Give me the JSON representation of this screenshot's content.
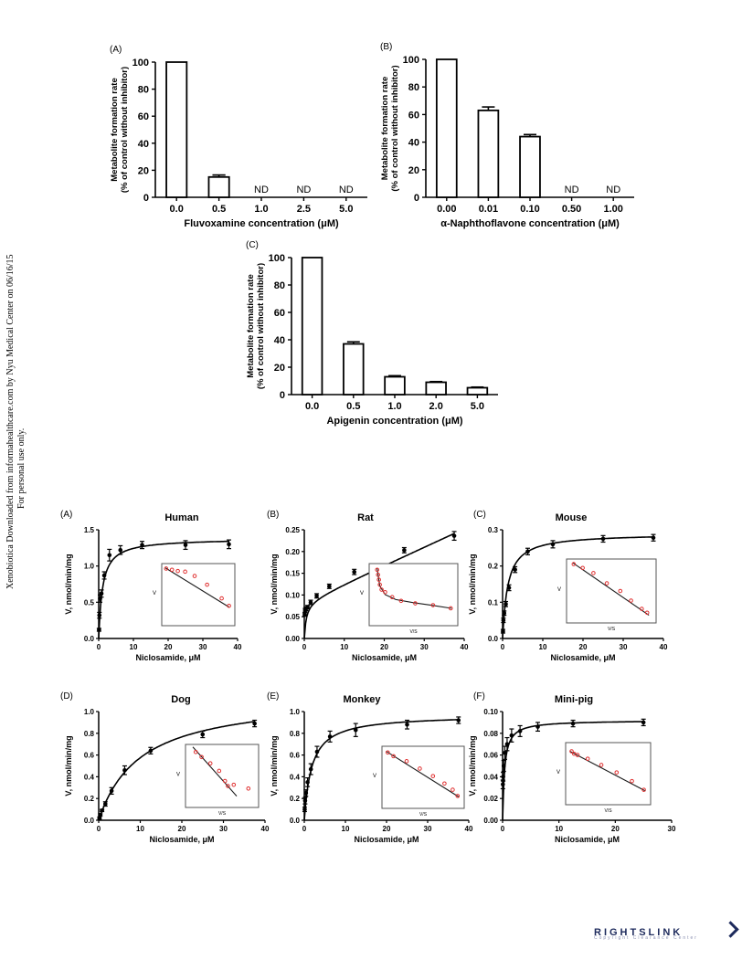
{
  "side_note": {
    "line1": "Xenobiotica Downloaded from informahealthcare.com by Nyu Medical Center on 06/16/15",
    "line2": "For personal use only."
  },
  "rightslink": {
    "logo": "RIGHTSLINK",
    "sub": "Copyright Clearance Center"
  },
  "colors": {
    "inset_points": "#e03030",
    "bars": "#ffffff",
    "axes": "#000000"
  },
  "chart_data": [
    {
      "id": "inhibA",
      "type": "bar",
      "panel": "(A)",
      "ylabel": [
        "Metabolite formation rate",
        "(% of control without inhibitor)"
      ],
      "xlabel": "Fluvoxamine concentration (μM)",
      "categories": [
        "0.0",
        "0.5",
        "1.0",
        "2.5",
        "5.0"
      ],
      "values": [
        100,
        15,
        null,
        null,
        null
      ],
      "errors": [
        0,
        1.5,
        0,
        0,
        0
      ],
      "labels": [
        "",
        "",
        "ND",
        "ND",
        "ND"
      ],
      "ylim": [
        0,
        100
      ],
      "yticks": [
        0,
        20,
        40,
        60,
        80,
        100
      ]
    },
    {
      "id": "inhibB",
      "type": "bar",
      "panel": "(B)",
      "ylabel": [
        "Metabolite formation rate",
        "(% of control without inhibitor)"
      ],
      "xlabel": "α-Naphthoflavone concentration (μM)",
      "categories": [
        "0.00",
        "0.01",
        "0.10",
        "0.50",
        "1.00"
      ],
      "values": [
        100,
        63,
        44,
        null,
        null
      ],
      "errors": [
        0,
        2.5,
        1.5,
        0,
        0
      ],
      "labels": [
        "",
        "",
        "",
        "ND",
        "ND"
      ],
      "ylim": [
        0,
        100
      ],
      "yticks": [
        0,
        20,
        40,
        60,
        80,
        100
      ]
    },
    {
      "id": "inhibC",
      "type": "bar",
      "panel": "(C)",
      "ylabel": [
        "Metabolite formation rate",
        "(% of control without inhibitor)"
      ],
      "xlabel": "Apigenin concentration (μM)",
      "categories": [
        "0.0",
        "0.5",
        "1.0",
        "2.0",
        "5.0"
      ],
      "values": [
        100,
        37,
        13,
        9,
        5
      ],
      "errors": [
        0,
        1.5,
        0.8,
        0.5,
        0.5
      ],
      "labels": [
        "",
        "",
        "",
        "",
        ""
      ],
      "ylim": [
        0,
        100
      ],
      "yticks": [
        0,
        20,
        40,
        60,
        80,
        100
      ]
    },
    {
      "id": "kinA",
      "type": "scatter",
      "panel": "(A)",
      "title": "Human",
      "xlabel": "Niclosamide, μM",
      "ylabel": "V, nmol/min/mg",
      "xlim": [
        0,
        40
      ],
      "xticks": [
        0,
        10,
        20,
        30,
        40
      ],
      "ylim": [
        0,
        1.5
      ],
      "yticks": [
        0.0,
        0.5,
        1.0,
        1.5
      ],
      "ytick_labels": [
        "0.0",
        "0.5",
        "1.0",
        "1.5"
      ],
      "fit": "mm",
      "vmax": 1.38,
      "km": 1.1,
      "x": [
        0.1,
        0.2,
        0.4,
        0.8,
        1.6,
        3.1,
        6.25,
        12.5,
        25,
        37.5
      ],
      "y": [
        0.12,
        0.32,
        0.55,
        0.62,
        0.87,
        1.15,
        1.22,
        1.29,
        1.29,
        1.3
      ],
      "err": [
        0.02,
        0.04,
        0.05,
        0.05,
        0.05,
        0.08,
        0.06,
        0.05,
        0.06,
        0.06
      ],
      "inset": {
        "xlabel": "",
        "ylabel": "V",
        "points": [
          [
            0.06,
            0.92
          ],
          [
            0.14,
            0.9
          ],
          [
            0.22,
            0.88
          ],
          [
            0.32,
            0.87
          ],
          [
            0.45,
            0.8
          ],
          [
            0.62,
            0.66
          ],
          [
            0.82,
            0.44
          ],
          [
            0.92,
            0.32
          ]
        ],
        "line": [
          [
            0.05,
            0.93
          ],
          [
            0.92,
            0.3
          ]
        ]
      }
    },
    {
      "id": "kinB",
      "type": "scatter",
      "panel": "(B)",
      "title": "Rat",
      "xlabel": "Niclosamide, μM",
      "ylabel": "V, nmol/min/mg",
      "xlim": [
        0,
        40
      ],
      "xticks": [
        0,
        10,
        20,
        30,
        40
      ],
      "ylim": [
        0,
        0.25
      ],
      "yticks": [
        0.0,
        0.05,
        0.1,
        0.15,
        0.2,
        0.25
      ],
      "ytick_labels": [
        "0.00",
        "0.05",
        "0.10",
        "0.15",
        "0.20",
        "0.25"
      ],
      "fit": "mm_linear",
      "vmax": 0.085,
      "km": 0.5,
      "slope": 0.0042,
      "x": [
        0.1,
        0.2,
        0.4,
        0.8,
        1.6,
        3.1,
        6.25,
        12.5,
        25,
        37.5
      ],
      "y": [
        0.055,
        0.065,
        0.068,
        0.072,
        0.083,
        0.098,
        0.12,
        0.153,
        0.203,
        0.236
      ],
      "err": [
        0.004,
        0.004,
        0.004,
        0.004,
        0.005,
        0.005,
        0.005,
        0.006,
        0.006,
        0.01
      ],
      "inset": {
        "xlabel": "V/S",
        "ylabel": "V",
        "points": [
          [
            0.09,
            0.9
          ],
          [
            0.1,
            0.82
          ],
          [
            0.11,
            0.74
          ],
          [
            0.12,
            0.66
          ],
          [
            0.14,
            0.58
          ],
          [
            0.18,
            0.54
          ],
          [
            0.26,
            0.46
          ],
          [
            0.36,
            0.4
          ],
          [
            0.52,
            0.36
          ],
          [
            0.72,
            0.33
          ],
          [
            0.92,
            0.28
          ]
        ],
        "curve": [
          [
            0.09,
            0.92
          ],
          [
            0.12,
            0.64
          ],
          [
            0.18,
            0.5
          ],
          [
            0.3,
            0.42
          ],
          [
            0.5,
            0.37
          ],
          [
            0.7,
            0.33
          ],
          [
            0.93,
            0.28
          ]
        ]
      }
    },
    {
      "id": "kinC",
      "type": "scatter",
      "panel": "(C)",
      "title": "Mouse",
      "xlabel": "Niclosamide, μM",
      "ylabel": "V, nmol/min/mg",
      "xlim": [
        0,
        40
      ],
      "xticks": [
        0,
        10,
        20,
        30,
        40
      ],
      "ylim": [
        0,
        0.3
      ],
      "yticks": [
        0.0,
        0.1,
        0.2,
        0.3
      ],
      "ytick_labels": [
        "0.0",
        "0.1",
        "0.2",
        "0.3"
      ],
      "fit": "mm",
      "vmax": 0.29,
      "km": 1.3,
      "x": [
        0.1,
        0.2,
        0.4,
        0.8,
        1.6,
        3.1,
        6.25,
        12.5,
        25,
        37.5
      ],
      "y": [
        0.02,
        0.05,
        0.07,
        0.095,
        0.14,
        0.19,
        0.24,
        0.26,
        0.275,
        0.278
      ],
      "err": [
        0.005,
        0.006,
        0.006,
        0.007,
        0.008,
        0.008,
        0.009,
        0.01,
        0.009,
        0.009
      ],
      "inset": {
        "xlabel": "V/S",
        "ylabel": "V",
        "points": [
          [
            0.08,
            0.92
          ],
          [
            0.18,
            0.86
          ],
          [
            0.3,
            0.78
          ],
          [
            0.45,
            0.62
          ],
          [
            0.6,
            0.5
          ],
          [
            0.72,
            0.35
          ],
          [
            0.84,
            0.22
          ],
          [
            0.9,
            0.16
          ]
        ],
        "line": [
          [
            0.07,
            0.94
          ],
          [
            0.92,
            0.12
          ]
        ]
      }
    },
    {
      "id": "kinD",
      "type": "scatter",
      "panel": "(D)",
      "title": "Dog",
      "xlabel": "Niclosamide, μM",
      "ylabel": "V, nmol/min/mg",
      "xlim": [
        0,
        40
      ],
      "xticks": [
        0,
        10,
        20,
        30,
        40
      ],
      "ylim": [
        0,
        1.0
      ],
      "yticks": [
        0.0,
        0.2,
        0.4,
        0.6,
        0.8,
        1.0
      ],
      "ytick_labels": [
        "0.0",
        "0.2",
        "0.4",
        "0.6",
        "0.8",
        "1.0"
      ],
      "fit": "mm",
      "vmax": 1.15,
      "km": 10,
      "x": [
        0.2,
        0.4,
        0.8,
        1.6,
        3.1,
        6.25,
        12.5,
        25,
        37.5
      ],
      "y": [
        0.02,
        0.05,
        0.09,
        0.15,
        0.27,
        0.46,
        0.64,
        0.79,
        0.89
      ],
      "err": [
        0.01,
        0.01,
        0.01,
        0.02,
        0.03,
        0.04,
        0.03,
        0.03,
        0.03
      ],
      "inset": {
        "xlabel": "V/S",
        "ylabel": "V",
        "points": [
          [
            0.14,
            0.88
          ],
          [
            0.22,
            0.8
          ],
          [
            0.34,
            0.7
          ],
          [
            0.46,
            0.58
          ],
          [
            0.54,
            0.42
          ],
          [
            0.58,
            0.34
          ],
          [
            0.66,
            0.36
          ],
          [
            0.86,
            0.3
          ]
        ],
        "line": [
          [
            0.1,
            0.96
          ],
          [
            0.7,
            0.18
          ]
        ]
      }
    },
    {
      "id": "kinE",
      "type": "scatter",
      "panel": "(E)",
      "title": "Monkey",
      "xlabel": "Niclosamide, μM",
      "ylabel": "V, nmol/min/mg",
      "xlim": [
        0,
        40
      ],
      "xticks": [
        0,
        10,
        20,
        30,
        40
      ],
      "ylim": [
        0,
        1.0
      ],
      "yticks": [
        0.0,
        0.2,
        0.4,
        0.6,
        0.8,
        1.0
      ],
      "ytick_labels": [
        "0.0",
        "0.2",
        "0.4",
        "0.6",
        "0.8",
        "1.0"
      ],
      "fit": "mm",
      "vmax": 0.97,
      "km": 1.8,
      "x": [
        0.1,
        0.2,
        0.4,
        0.8,
        1.6,
        3.1,
        6.25,
        12.5,
        25,
        37.5
      ],
      "y": [
        0.1,
        0.18,
        0.25,
        0.35,
        0.47,
        0.63,
        0.77,
        0.83,
        0.88,
        0.92
      ],
      "err": [
        0.02,
        0.03,
        0.03,
        0.04,
        0.05,
        0.05,
        0.05,
        0.06,
        0.04,
        0.03
      ],
      "inset": {
        "xlabel": "V/S",
        "ylabel": "V",
        "points": [
          [
            0.07,
            0.9
          ],
          [
            0.14,
            0.84
          ],
          [
            0.3,
            0.76
          ],
          [
            0.46,
            0.64
          ],
          [
            0.62,
            0.52
          ],
          [
            0.76,
            0.4
          ],
          [
            0.86,
            0.3
          ],
          [
            0.92,
            0.2
          ]
        ],
        "line": [
          [
            0.05,
            0.92
          ],
          [
            0.94,
            0.18
          ]
        ]
      }
    },
    {
      "id": "kinF",
      "type": "scatter",
      "panel": "(F)",
      "title": "Mini-pig",
      "xlabel": "Niclosamide, μM",
      "ylabel": "V, nmol/min/mg",
      "xlim": [
        0,
        30
      ],
      "xticks": [
        0,
        10,
        20,
        30
      ],
      "ylim": [
        0,
        0.1
      ],
      "yticks": [
        0.0,
        0.02,
        0.04,
        0.06,
        0.08,
        0.1
      ],
      "ytick_labels": [
        "0.00",
        "0.02",
        "0.04",
        "0.06",
        "0.08",
        "0.10"
      ],
      "fit": "mm",
      "vmax": 0.092,
      "km": 0.35,
      "x": [
        0.05,
        0.1,
        0.2,
        0.4,
        0.8,
        1.6,
        3.1,
        6.25,
        12.5,
        25
      ],
      "y": [
        0.033,
        0.04,
        0.05,
        0.062,
        0.07,
        0.078,
        0.082,
        0.086,
        0.089,
        0.09
      ],
      "err": [
        0.004,
        0.004,
        0.005,
        0.006,
        0.006,
        0.006,
        0.005,
        0.004,
        0.003,
        0.003
      ],
      "inset": {
        "xlabel": "V/S",
        "ylabel": "V",
        "points": [
          [
            0.07,
            0.86
          ],
          [
            0.1,
            0.82
          ],
          [
            0.14,
            0.8
          ],
          [
            0.26,
            0.74
          ],
          [
            0.42,
            0.64
          ],
          [
            0.6,
            0.52
          ],
          [
            0.78,
            0.38
          ],
          [
            0.92,
            0.24
          ]
        ],
        "line": [
          [
            0.05,
            0.86
          ],
          [
            0.94,
            0.22
          ]
        ]
      }
    }
  ]
}
